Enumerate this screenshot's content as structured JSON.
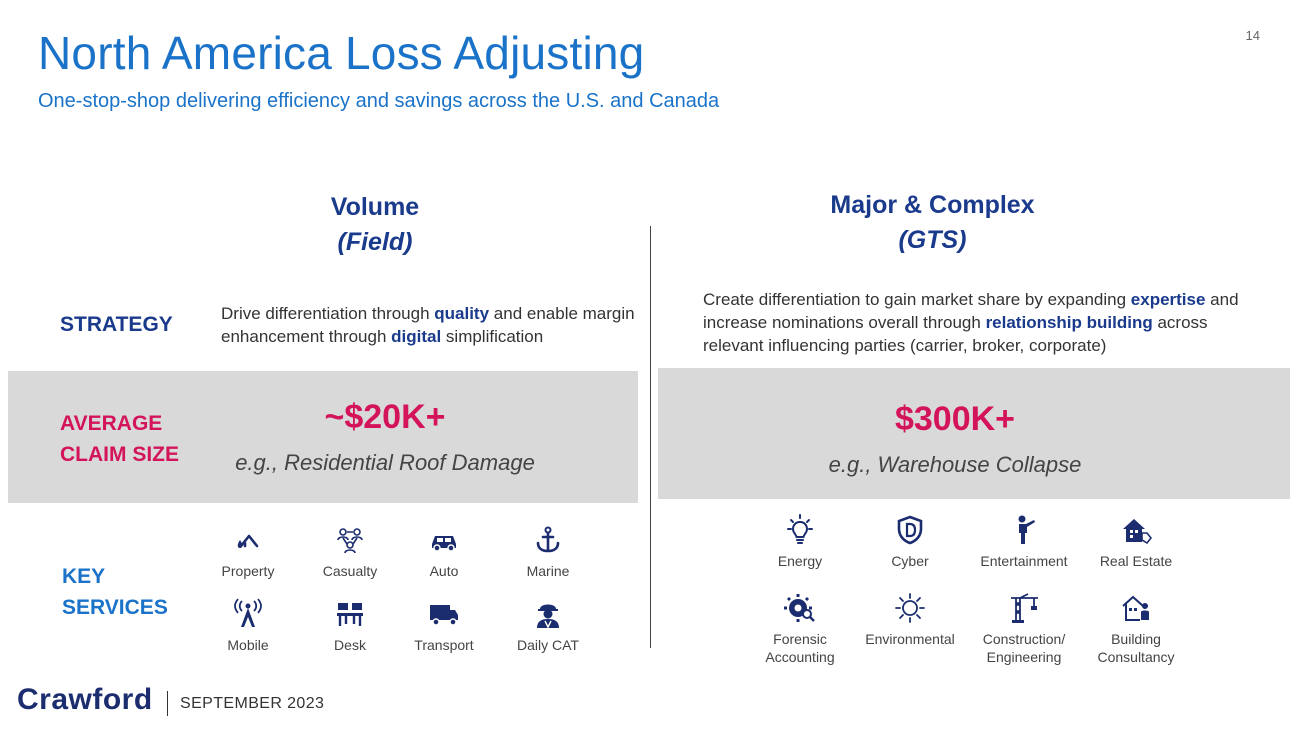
{
  "title": "North America Loss Adjusting",
  "subtitle": "One-stop-shop delivering efficiency and savings across the U.S. and Canada",
  "page_number": "14",
  "columns": {
    "left": {
      "heading": "Volume",
      "subheading": "(Field)"
    },
    "right": {
      "heading": "Major & Complex",
      "subheading": "(GTS)"
    }
  },
  "row_labels": {
    "strategy": "STRATEGY",
    "claim_size": [
      "AVERAGE",
      "CLAIM SIZE"
    ],
    "key_services": [
      "KEY",
      "SERVICES"
    ]
  },
  "strategy": {
    "left": [
      {
        "t": "Drive differentiation through "
      },
      {
        "t": "quality",
        "b": true
      },
      {
        "t": " and enable margin enhancement through "
      },
      {
        "t": "digital",
        "b": true
      },
      {
        "t": " simplification"
      }
    ],
    "right": [
      {
        "t": "Create differentiation to gain market share by expanding "
      },
      {
        "t": "expertise",
        "b": true
      },
      {
        "t": " and increase nominations overall through "
      },
      {
        "t": "relationship building",
        "b": true
      },
      {
        "t": " across relevant influencing parties (carrier, broker, corporate)"
      }
    ]
  },
  "claim_size": {
    "left": {
      "value": "~$20K+",
      "example": "e.g., Residential Roof Damage"
    },
    "right": {
      "value": "$300K+",
      "example": "e.g., Warehouse Collapse"
    }
  },
  "services_left": [
    {
      "label": "Property",
      "icon": "house-drop-icon"
    },
    {
      "label": "Casualty",
      "icon": "people-network-icon"
    },
    {
      "label": "Auto",
      "icon": "car-icon"
    },
    {
      "label": "Marine",
      "icon": "anchor-icon"
    },
    {
      "label": "Mobile",
      "icon": "cell-tower-icon"
    },
    {
      "label": "Desk",
      "icon": "desk-icon"
    },
    {
      "label": "Transport",
      "icon": "truck-icon"
    },
    {
      "label": "Daily CAT",
      "icon": "worker-icon"
    }
  ],
  "services_right": [
    {
      "label": "Energy",
      "icon": "lightbulb-icon"
    },
    {
      "label": "Cyber",
      "icon": "shield-icon"
    },
    {
      "label": "Entertainment",
      "icon": "performer-icon"
    },
    {
      "label": "Real Estate",
      "icon": "house-tag-icon"
    },
    {
      "label": "Forensic\nAccounting",
      "icon": "gear-search-icon"
    },
    {
      "label": "Environmental",
      "icon": "sun-icon"
    },
    {
      "label": "Construction/\nEngineering",
      "icon": "crane-icon"
    },
    {
      "label": "Building\nConsultancy",
      "icon": "building-person-icon"
    }
  ],
  "footer": {
    "logo": "Crawford",
    "date": "SEPTEMBER 2023"
  },
  "colors": {
    "title": "#1a73c8",
    "navy": "#1a3a8c",
    "magenta": "#d4145a",
    "band": "#d9d9d9",
    "icon": "#1b2d6e"
  }
}
